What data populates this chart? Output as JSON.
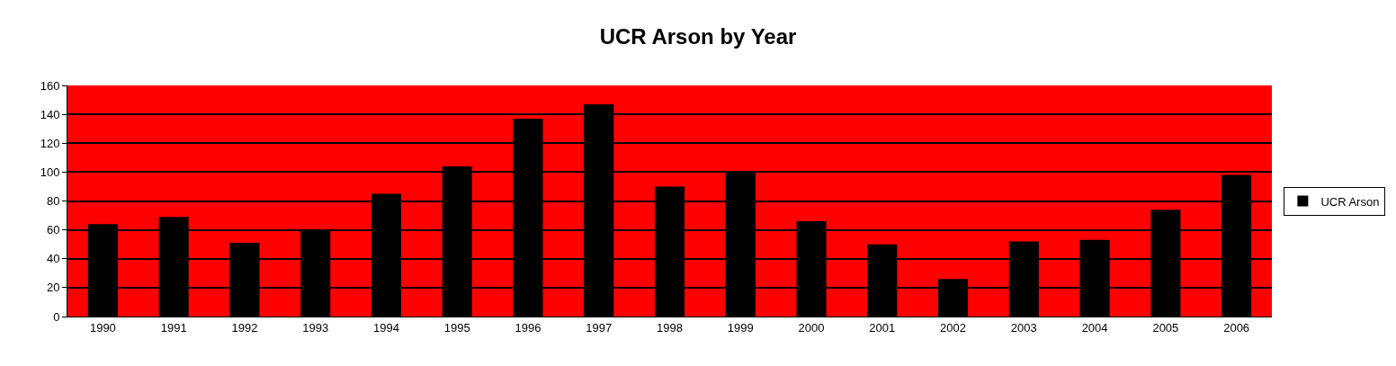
{
  "chart_data": {
    "type": "bar",
    "title": "UCR Arson by Year",
    "categories": [
      "1990",
      "1991",
      "1992",
      "1993",
      "1994",
      "1995",
      "1996",
      "1997",
      "1998",
      "1999",
      "2000",
      "2001",
      "2002",
      "2003",
      "2004",
      "2005",
      "2006"
    ],
    "series": [
      {
        "name": "UCR Arson",
        "color": "#000000",
        "values": [
          64,
          69,
          51,
          60,
          85,
          104,
          137,
          147,
          90,
          100,
          66,
          50,
          26,
          52,
          53,
          74,
          98
        ]
      }
    ],
    "ylim": [
      0,
      160
    ],
    "yticks": [
      0,
      20,
      40,
      60,
      80,
      100,
      120,
      140,
      160
    ],
    "grid": "y",
    "legend": "right"
  }
}
